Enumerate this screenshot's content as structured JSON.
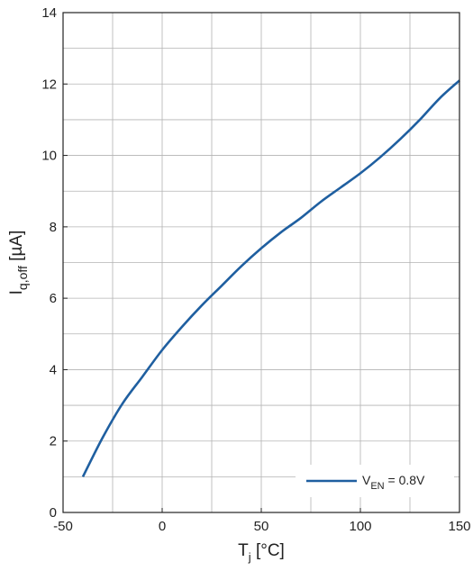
{
  "chart_data": {
    "type": "line",
    "title": "",
    "xlabel": {
      "main": "T",
      "sub": "j",
      "unit": " [°C]"
    },
    "ylabel": {
      "main": "I",
      "sub": "q,off",
      "unit": " [µA]"
    },
    "xlim": [
      -50,
      150
    ],
    "ylim": [
      0,
      14
    ],
    "xticks": [
      -50,
      0,
      50,
      100,
      150
    ],
    "yticks": [
      0,
      2,
      4,
      6,
      8,
      10,
      12,
      14
    ],
    "grid": true,
    "legend_position": "bottom-right",
    "series": [
      {
        "name": "V_EN = 0.8V",
        "legend": {
          "main": "V",
          "sub": "EN",
          "rest": " = 0.8V"
        },
        "color": "#1f5fa0",
        "x": [
          -40,
          -30,
          -20,
          -10,
          0,
          10,
          20,
          30,
          40,
          50,
          60,
          70,
          80,
          90,
          100,
          110,
          120,
          130,
          140,
          150
        ],
        "y": [
          1.0,
          2.1,
          3.05,
          3.8,
          4.55,
          5.2,
          5.8,
          6.35,
          6.9,
          7.4,
          7.85,
          8.25,
          8.7,
          9.1,
          9.5,
          9.95,
          10.45,
          11.0,
          11.6,
          12.1
        ]
      }
    ]
  }
}
